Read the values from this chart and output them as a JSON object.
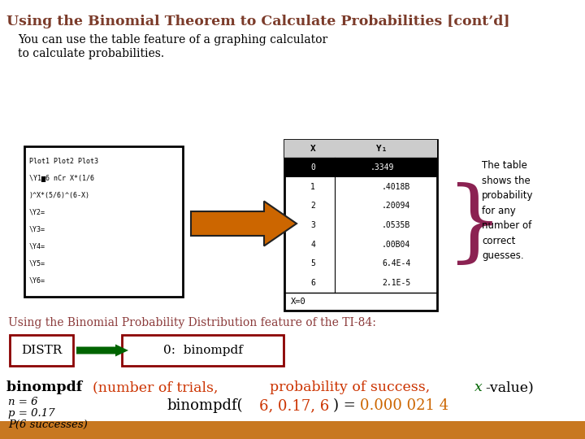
{
  "title": "Using the Binomial Theorem to Calculate Probabilities [cont’d]",
  "title_color": "#7B3B2A",
  "bg_color": "#FFFFFF",
  "subtitle_line1": "You can use the table feature of a graphing calculator",
  "subtitle_line2": "to calculate probabilities.",
  "subtitle_color": "#000000",
  "calc_screen1_lines": [
    "Plot1 Plot2 Plot3",
    "\\Y1▆6 nCr X*(1/6",
    ")^X*(5/6)^(6-X)",
    "\\Y2=",
    "\\Y3=",
    "\\Y4=",
    "\\Y5=",
    "\\Y6="
  ],
  "calc_screen2_rows": [
    [
      "0",
      ".3349"
    ],
    [
      "1",
      ".4018B"
    ],
    [
      "2",
      ".20094"
    ],
    [
      "3",
      ".0535B"
    ],
    [
      "4",
      ".00B04"
    ],
    [
      "5",
      "6.4E-4"
    ],
    [
      "6",
      "2.1E-5"
    ]
  ],
  "calc_screen2_footer": "X=0",
  "brace_color": "#8B2252",
  "brace_text": "The table\nshows the\nprobability\nfor any\nnumber of\ncorrect\nguesses.",
  "section2_text": "Using the Binomial Probability Distribution feature of the TI-84:",
  "section2_color": "#8B3A3A",
  "distr_box_color": "#8B0000",
  "arrow_color": "#006400",
  "orange_arrow_color": "#CC6600",
  "formula_red_color": "#CC3300",
  "formula_green_color": "#006400",
  "footer_bg": "#C87820"
}
